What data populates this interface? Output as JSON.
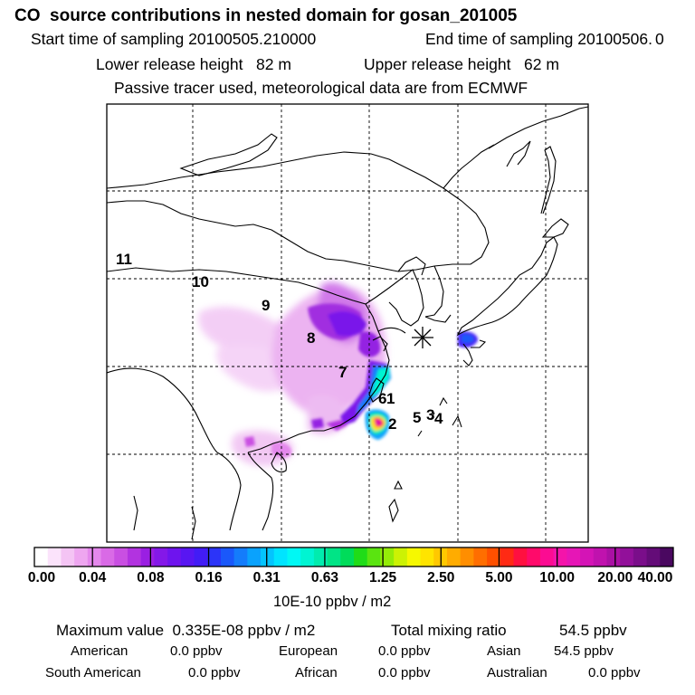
{
  "header": {
    "title": "CO  source contributions in nested domain for gosan_201005",
    "start_label": "Start time of sampling 20100505.210000",
    "end_label": "End time of sampling 20100506.",
    "end_value": "0",
    "lower_label": "Lower release height   82 m",
    "upper_label": "Upper release height   62 m",
    "tracer_note": "Passive tracer used, meteorological data are from ECMWF"
  },
  "chart_data": {
    "type": "heatmap",
    "title": "CO  source contributions in nested domain for gosan_201005",
    "source_regions": [
      "11",
      "10",
      "9",
      "8",
      "7",
      "6",
      "1",
      "2",
      "5",
      "3",
      "4"
    ],
    "receptor_marker": "asterisk",
    "gridlines": "dashed",
    "colorbar": {
      "ticks": [
        "0.00",
        "0.04",
        "0.08",
        "0.16",
        "0.31",
        "0.63",
        "1.25",
        "2.50",
        "5.00",
        "10.00",
        "20.00",
        "40.00"
      ],
      "unit": "10E-10 ppbv / m2",
      "colors": [
        "#ffffff",
        "#fbe3fb",
        "#f4c4f4",
        "#eea6f0",
        "#e488ec",
        "#d96ae6",
        "#c94fe2",
        "#b233e0",
        "#9a1fe2",
        "#8418e8",
        "#6e14ee",
        "#5816f2",
        "#421cf6",
        "#2c34f8",
        "#1a58fa",
        "#147cfb",
        "#0aa2fd",
        "#04c4fe",
        "#00e4ff",
        "#00f8f4",
        "#00f4d2",
        "#00ecae",
        "#00e486",
        "#00dc5a",
        "#20dc18",
        "#5ae410",
        "#94ec08",
        "#ccf204",
        "#f6f800",
        "#ffe400",
        "#ffc800",
        "#ffac00",
        "#ff8e00",
        "#ff6e00",
        "#ff5000",
        "#ff2a14",
        "#ff1040",
        "#ff0a6a",
        "#fc0c92",
        "#f414aa",
        "#e616b6",
        "#d414b6",
        "#c012ae",
        "#aa10a4",
        "#92109a",
        "#7a0e8a",
        "#640c78",
        "#4a0860"
      ]
    }
  },
  "stats": {
    "max_label": "Maximum value  0.335E-08 ppbv / m2",
    "total_label": "Total mixing ratio",
    "total_value": "54.5 ppbv",
    "american_label": "American",
    "american_value": "0.0 ppbv",
    "european_label": "European",
    "european_value": "0.0 ppbv",
    "asian_label": "Asian",
    "asian_value": "54.5 ppbv",
    "south_american_label": "South American",
    "south_american_value": "0.0 ppbv",
    "african_label": "African",
    "african_value": "0.0 ppbv",
    "australian_label": "Australian",
    "australian_value": "0.0 ppbv"
  }
}
